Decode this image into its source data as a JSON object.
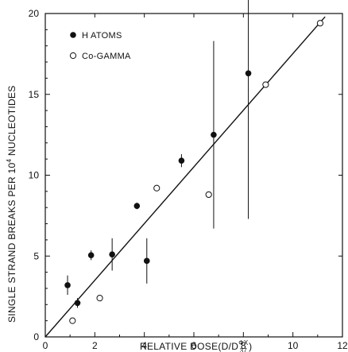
{
  "chart_data": {
    "type": "scatter",
    "xlabel": "RELATIVE DOSE(D/D",
    "xlabel_sup": "ΦX",
    "xlabel_sub": "37",
    "xlabel_close": ")",
    "ylabel": "SINGLE STRAND BREAKS PER 10",
    "ylabel_sup": "4",
    "ylabel_tail": " NUCLEOTIDES",
    "xlim": [
      0,
      12
    ],
    "ylim": [
      0,
      20
    ],
    "xticks": [
      "0",
      "2",
      "4",
      "6",
      "8",
      "10",
      "12"
    ],
    "yticks": [
      "0",
      "5",
      "10",
      "15",
      "20"
    ],
    "series": [
      {
        "name": "H ATOMS",
        "marker": "filled-circle",
        "points": [
          {
            "x": 0.9,
            "y": 3.2,
            "err": 0.6
          },
          {
            "x": 1.3,
            "y": 2.1,
            "err": 0.3
          },
          {
            "x": 1.85,
            "y": 5.05,
            "err": 0.3
          },
          {
            "x": 2.7,
            "y": 5.1,
            "err": 1.0
          },
          {
            "x": 3.7,
            "y": 8.1,
            "err": 0.2
          },
          {
            "x": 4.1,
            "y": 4.7,
            "err": 1.4
          },
          {
            "x": 5.5,
            "y": 10.9,
            "err": 0.4
          },
          {
            "x": 6.8,
            "y": 12.5,
            "err": 5.8
          },
          {
            "x": 8.2,
            "y": 16.3,
            "err": 9.0
          }
        ]
      },
      {
        "name": "Co-GAMMA",
        "marker": "open-circle",
        "points": [
          {
            "x": 1.1,
            "y": 1.0
          },
          {
            "x": 2.2,
            "y": 2.4
          },
          {
            "x": 4.5,
            "y": 9.2
          },
          {
            "x": 6.6,
            "y": 8.8
          },
          {
            "x": 8.9,
            "y": 15.6
          },
          {
            "x": 11.1,
            "y": 19.4
          }
        ]
      }
    ],
    "fit_line": {
      "x": [
        0,
        11.3
      ],
      "y": [
        0,
        19.8
      ]
    },
    "legend_position": "top-left",
    "grid": false,
    "colors": {
      "ink": "#111111",
      "background": "#ffffff"
    }
  }
}
